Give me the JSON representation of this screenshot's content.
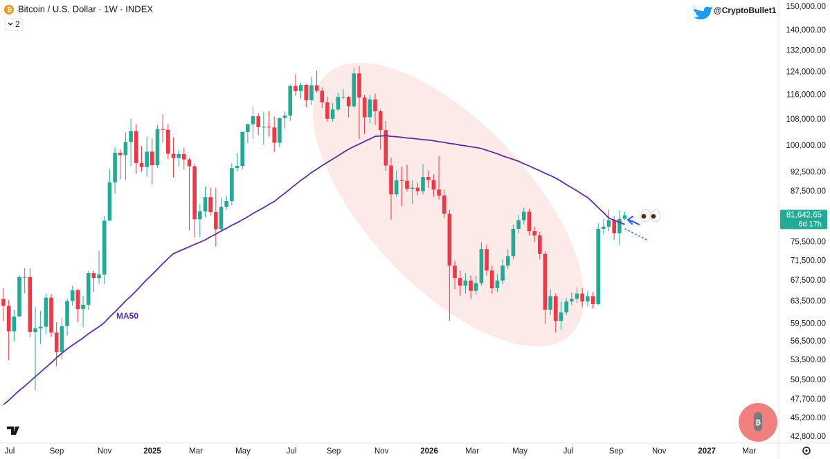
{
  "chart_data": {
    "type": "candlestick",
    "title": "Bitcoin / U.S. Dollar · 1W · INDEX",
    "indicator_count": "2",
    "author": "@CryptoBullet1",
    "ma_label": "MA50",
    "last_price_label": "81,642.65",
    "countdown": "6d 17h",
    "up_color": "#22ab94",
    "down_color": "#f23645",
    "ma_color": "#5b2ca0",
    "log": true,
    "grid": false,
    "xlim": [
      -0.65,
      146.0
    ],
    "ylim": [
      42100,
      153000
    ],
    "xticks": [
      {
        "value": 1.17,
        "label": "Jul"
      },
      {
        "value": 10.04,
        "label": "Sep"
      },
      {
        "value": 19.04,
        "label": "Nov"
      },
      {
        "value": 28.03,
        "label": "2025"
      },
      {
        "value": 36.25,
        "label": "Mar"
      },
      {
        "value": 45.11,
        "label": "May"
      },
      {
        "value": 54.24,
        "label": "Jul"
      },
      {
        "value": 62.19,
        "label": "Sep"
      },
      {
        "value": 71.19,
        "label": "Nov"
      },
      {
        "value": 80.18,
        "label": "2026"
      },
      {
        "value": 88.27,
        "label": "Mar"
      },
      {
        "value": 97.26,
        "label": "May"
      },
      {
        "value": 106.39,
        "label": "Jul"
      },
      {
        "value": 115.38,
        "label": "Sep"
      },
      {
        "value": 123.47,
        "label": "Nov"
      },
      {
        "value": 132.46,
        "label": "2027"
      },
      {
        "value": 140.42,
        "label": "Mar"
      }
    ],
    "yticks": [
      {
        "value": 150000,
        "label": "150,000.00"
      },
      {
        "value": 140000,
        "label": "140,000.00"
      },
      {
        "value": 132000,
        "label": "132,000.00"
      },
      {
        "value": 124000,
        "label": "124,000.00"
      },
      {
        "value": 116000,
        "label": "116,000.00"
      },
      {
        "value": 108000,
        "label": "108,000.00"
      },
      {
        "value": 100000,
        "label": "100,000.00"
      },
      {
        "value": 92500,
        "label": "92,500.00"
      },
      {
        "value": 87500,
        "label": "87,500.00"
      },
      {
        "value": 75500,
        "label": "75,500.00"
      },
      {
        "value": 71500,
        "label": "71,500.00"
      },
      {
        "value": 67500,
        "label": "67,500.00"
      },
      {
        "value": 63500,
        "label": "63,500.00"
      },
      {
        "value": 59500,
        "label": "59,500.00"
      },
      {
        "value": 56500,
        "label": "56,500.00"
      },
      {
        "value": 53500,
        "label": "53,500.00"
      },
      {
        "value": 50500,
        "label": "50,500.00"
      },
      {
        "value": 47700,
        "label": "47,700.00"
      },
      {
        "value": 45200,
        "label": "45,200.00"
      },
      {
        "value": 42800,
        "label": "42,800.00"
      }
    ],
    "open": [
      64000,
      62700,
      58200,
      60800,
      68200,
      68200,
      58100,
      58700,
      59000,
      64200,
      58000,
      54800,
      59100,
      63600,
      65600,
      62100,
      62900,
      69000,
      68000,
      68700,
      80400,
      89900,
      98000,
      97300,
      101100,
      104400,
      95100,
      94000,
      98300,
      94500,
      105000,
      104800,
      97700,
      96500,
      97600,
      96100,
      94200,
      80700,
      82600,
      86100,
      82400,
      78400,
      83700,
      85100,
      93700,
      94300,
      104100,
      106500,
      109000,
      105600,
      105700,
      105500,
      100900,
      108400,
      109200,
      119100,
      117300,
      119400,
      114200,
      119300,
      117400,
      113500,
      108200,
      111200,
      115300,
      115300,
      112200,
      123500,
      115100,
      108700,
      114500,
      110600,
      104700,
      94400,
      86800,
      90400,
      90300,
      88200,
      88500,
      87600,
      91300,
      90500,
      88000,
      86500,
      82000,
      70500,
      68000,
      66500,
      67500,
      65500,
      67000,
      74000,
      69500,
      66000,
      67500,
      70500,
      72500,
      78500,
      80500,
      82500,
      78000,
      77000,
      73000,
      62000,
      64500,
      60000,
      61500,
      63500,
      64000,
      65000,
      63500,
      64500,
      63000,
      78500,
      79000,
      80500,
      77500,
      80800
    ],
    "high": [
      66000,
      63800,
      62000,
      68600,
      70000,
      70000,
      62500,
      61800,
      65000,
      64900,
      59800,
      60500,
      64100,
      66500,
      65900,
      64500,
      69400,
      69500,
      73600,
      81500,
      93500,
      99600,
      98900,
      104000,
      108300,
      106500,
      99900,
      102700,
      102200,
      106300,
      109600,
      106500,
      102500,
      98800,
      99500,
      96500,
      95000,
      84300,
      88800,
      88500,
      88500,
      86000,
      86500,
      95000,
      97900,
      104300,
      106700,
      111900,
      110000,
      110500,
      110600,
      108900,
      108500,
      110500,
      119500,
      123200,
      120200,
      119800,
      122300,
      124500,
      118600,
      115400,
      113300,
      116800,
      117900,
      115700,
      125700,
      126200,
      116000,
      115900,
      116400,
      111200,
      107500,
      96600,
      93100,
      94100,
      94600,
      90400,
      89800,
      94800,
      93000,
      92000,
      97000,
      88000,
      83000,
      71500,
      69500,
      69000,
      68500,
      68500,
      75500,
      75000,
      70500,
      68800,
      71800,
      74000,
      79500,
      81800,
      83500,
      83200,
      79000,
      77800,
      73500,
      65800,
      65000,
      63500,
      64200,
      65200,
      66200,
      66000,
      65500,
      65200,
      79800,
      80800,
      83000,
      81500,
      82800,
      82500
    ],
    "low": [
      60000,
      53500,
      56500,
      60600,
      65000,
      57200,
      49000,
      56100,
      57800,
      57200,
      52600,
      53600,
      57500,
      62700,
      59800,
      58900,
      62000,
      65300,
      66800,
      66800,
      80300,
      87000,
      90800,
      90500,
      94200,
      92200,
      92700,
      91400,
      89300,
      93900,
      100900,
      96200,
      91200,
      94200,
      93300,
      78200,
      76600,
      76600,
      81200,
      81600,
      74500,
      78000,
      83000,
      84000,
      92800,
      93400,
      100800,
      102100,
      103100,
      100400,
      102700,
      98200,
      99600,
      105100,
      107500,
      115800,
      114700,
      111900,
      112600,
      116800,
      111700,
      107300,
      107300,
      110600,
      114700,
      108600,
      111600,
      102000,
      103500,
      106700,
      106300,
      98900,
      93000,
      80600,
      86100,
      83800,
      87500,
      84400,
      86500,
      86800,
      88500,
      86200,
      85500,
      81000,
      60000,
      65800,
      64500,
      65000,
      64000,
      64800,
      66500,
      68500,
      65000,
      65200,
      66800,
      69800,
      71800,
      77500,
      79500,
      77000,
      75500,
      71800,
      59500,
      61000,
      58000,
      58500,
      61000,
      62800,
      63200,
      62500,
      62600,
      62200,
      62800,
      77200,
      78000,
      76000,
      74800,
      80500
    ],
    "close": [
      62700,
      58200,
      60800,
      68200,
      68200,
      58100,
      58700,
      59000,
      64200,
      58000,
      54800,
      59100,
      63600,
      65600,
      62100,
      62900,
      69000,
      68000,
      68700,
      80400,
      89900,
      98000,
      97300,
      101100,
      104400,
      95100,
      94000,
      98300,
      94500,
      105000,
      104800,
      97700,
      96500,
      97600,
      96100,
      94200,
      80700,
      82600,
      86100,
      82400,
      78400,
      83700,
      85100,
      93700,
      94300,
      104100,
      106500,
      109000,
      105600,
      105700,
      105500,
      100900,
      108400,
      109200,
      119100,
      117300,
      119400,
      114200,
      119300,
      117400,
      113500,
      108200,
      111200,
      115300,
      115300,
      112200,
      123500,
      115100,
      108700,
      114500,
      110600,
      104700,
      94400,
      86800,
      90400,
      90300,
      88200,
      88500,
      87600,
      91300,
      90500,
      88000,
      86500,
      82000,
      70500,
      68000,
      66500,
      67500,
      65500,
      67000,
      74000,
      69500,
      66000,
      67500,
      70500,
      72500,
      78500,
      80500,
      82500,
      78000,
      77000,
      73000,
      62000,
      64500,
      60000,
      61500,
      63500,
      64000,
      65000,
      63500,
      64500,
      63000,
      78500,
      79000,
      80500,
      77500,
      80800,
      81642.65
    ],
    "ma50": [
      47000,
      47600,
      48300,
      49000,
      49600,
      50300,
      51000,
      51700,
      52400,
      53100,
      53900,
      54600,
      55300,
      55900,
      56500,
      57100,
      57800,
      58400,
      59000,
      59700,
      60700,
      61600,
      62600,
      63600,
      64500,
      65500,
      66600,
      67700,
      68700,
      69800,
      70900,
      72000,
      73000,
      73500,
      74000,
      74500,
      75000,
      75500,
      76000,
      76700,
      77300,
      78000,
      78600,
      79300,
      79900,
      80600,
      81300,
      82100,
      82800,
      83500,
      84300,
      85000,
      86100,
      87100,
      88200,
      89300,
      90400,
      91400,
      92500,
      93400,
      94400,
      95300,
      96200,
      97100,
      98100,
      99000,
      99800,
      100500,
      101300,
      102000,
      102800,
      102900,
      103000,
      102800,
      102700,
      102500,
      102300,
      102200,
      102000,
      101800,
      101700,
      101500,
      101200,
      101000,
      100700,
      100500,
      100200,
      100000,
      99700,
      99500,
      99200,
      98700,
      98200,
      97700,
      97100,
      96600,
      96100,
      95600,
      94900,
      94300,
      93600,
      93000,
      92300,
      91700,
      91000,
      90200,
      89300,
      88500,
      87700,
      86800,
      86000,
      84800,
      83500,
      82300,
      81000,
      80500,
      80000,
      79500
    ]
  }
}
